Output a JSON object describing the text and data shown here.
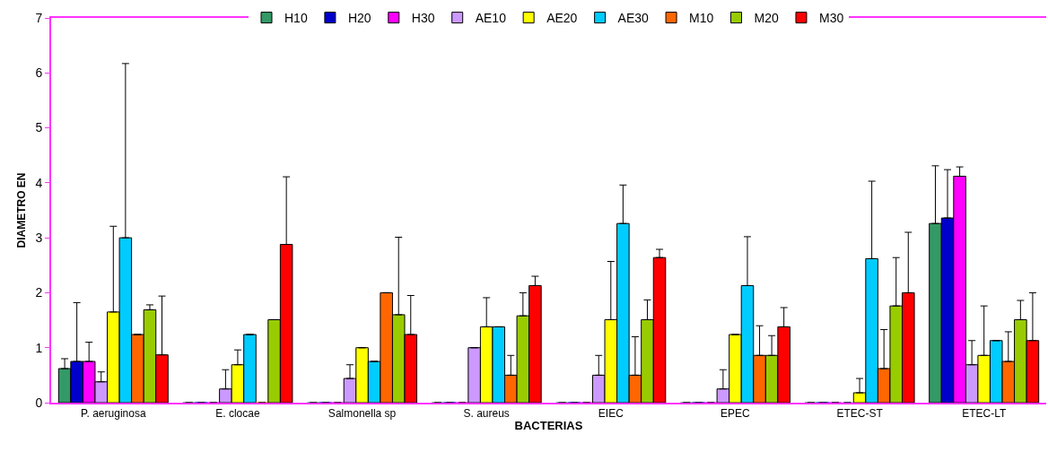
{
  "chart_data": {
    "type": "bar",
    "xlabel": "BACTERIAS",
    "ylabel": "DIAMETRO EN",
    "categories": [
      "P. aeruginosa",
      "E. clocae",
      "Salmonella sp",
      "S. aureus",
      "EIEC",
      "EPEC",
      "ETEC-ST",
      "ETEC-LT"
    ],
    "series": [
      {
        "name": "H10",
        "color": "#339966",
        "values": [
          0.62,
          0,
          0,
          0,
          0,
          0,
          0,
          3.26
        ],
        "errors": [
          [
            0.62,
            0.8
          ],
          null,
          null,
          null,
          null,
          null,
          null,
          [
            3.26,
            4.31
          ]
        ]
      },
      {
        "name": "H20",
        "color": "#0000cc",
        "values": [
          0.75,
          0,
          0,
          0,
          0,
          0,
          0,
          3.36
        ],
        "errors": [
          [
            0.75,
            1.82
          ],
          null,
          null,
          null,
          null,
          null,
          null,
          [
            3.36,
            4.24
          ]
        ]
      },
      {
        "name": "H30",
        "color": "#ff00ff",
        "values": [
          0.75,
          0,
          0,
          0,
          0,
          0,
          0,
          4.12
        ],
        "errors": [
          [
            0.75,
            1.1
          ],
          null,
          null,
          null,
          null,
          null,
          null,
          [
            4.12,
            4.29
          ]
        ]
      },
      {
        "name": "AE10",
        "color": "#cc99ff",
        "values": [
          0.38,
          0.25,
          0.44,
          1.0,
          0.5,
          0.25,
          0,
          0.69
        ],
        "errors": [
          [
            0.38,
            0.56
          ],
          [
            0.25,
            0.6
          ],
          [
            0.44,
            0.69
          ],
          null,
          [
            0.5,
            0.86
          ],
          [
            0.25,
            0.6
          ],
          null,
          [
            0.69,
            1.13
          ]
        ]
      },
      {
        "name": "AE20",
        "color": "#ffff00",
        "values": [
          1.65,
          0.69,
          1.0,
          1.38,
          1.51,
          1.24,
          0.18,
          0.86
        ],
        "errors": [
          [
            1.65,
            3.21
          ],
          [
            0.69,
            0.96
          ],
          null,
          [
            1.38,
            1.91
          ],
          [
            1.51,
            2.57
          ],
          null,
          [
            0.18,
            0.44
          ],
          [
            0.86,
            1.76
          ]
        ]
      },
      {
        "name": "AE30",
        "color": "#00ccff",
        "values": [
          3.0,
          1.24,
          0.75,
          1.38,
          3.26,
          2.13,
          2.62,
          1.13
        ],
        "errors": [
          [
            3.0,
            6.17
          ],
          null,
          null,
          null,
          [
            3.26,
            3.96
          ],
          [
            2.13,
            3.02
          ],
          [
            2.62,
            4.03
          ],
          null
        ]
      },
      {
        "name": "M10",
        "color": "#ff6600",
        "values": [
          1.24,
          0,
          2.0,
          0.5,
          0.5,
          0.86,
          0.62,
          0.75
        ],
        "errors": [
          null,
          null,
          null,
          [
            0.5,
            0.86
          ],
          [
            0.5,
            1.2
          ],
          [
            0.86,
            1.4
          ],
          [
            0.62,
            1.33
          ],
          [
            0.75,
            1.29
          ]
        ]
      },
      {
        "name": "M20",
        "color": "#99cc00",
        "values": [
          1.69,
          1.51,
          1.6,
          1.58,
          1.51,
          0.86,
          1.76,
          1.51
        ],
        "errors": [
          [
            1.69,
            1.78
          ],
          null,
          [
            1.6,
            3.01
          ],
          [
            1.58,
            2.0
          ],
          [
            1.51,
            1.87
          ],
          [
            0.86,
            1.22
          ],
          [
            1.76,
            2.64
          ],
          [
            1.51,
            1.86
          ]
        ]
      },
      {
        "name": "M30",
        "color": "#ff0000",
        "values": [
          0.87,
          2.88,
          1.24,
          2.13,
          2.64,
          1.38,
          2.0,
          1.13
        ],
        "errors": [
          [
            0.87,
            1.94
          ],
          [
            2.88,
            4.11
          ],
          [
            1.24,
            1.95
          ],
          [
            2.13,
            2.3
          ],
          [
            2.64,
            2.79
          ],
          [
            1.38,
            1.73
          ],
          [
            2.0,
            3.1
          ],
          [
            1.13,
            2.0
          ]
        ]
      }
    ],
    "ylim": [
      0,
      7
    ],
    "yticks": [
      0,
      1,
      2,
      3,
      4,
      5,
      6,
      7
    ],
    "legend": "top"
  }
}
